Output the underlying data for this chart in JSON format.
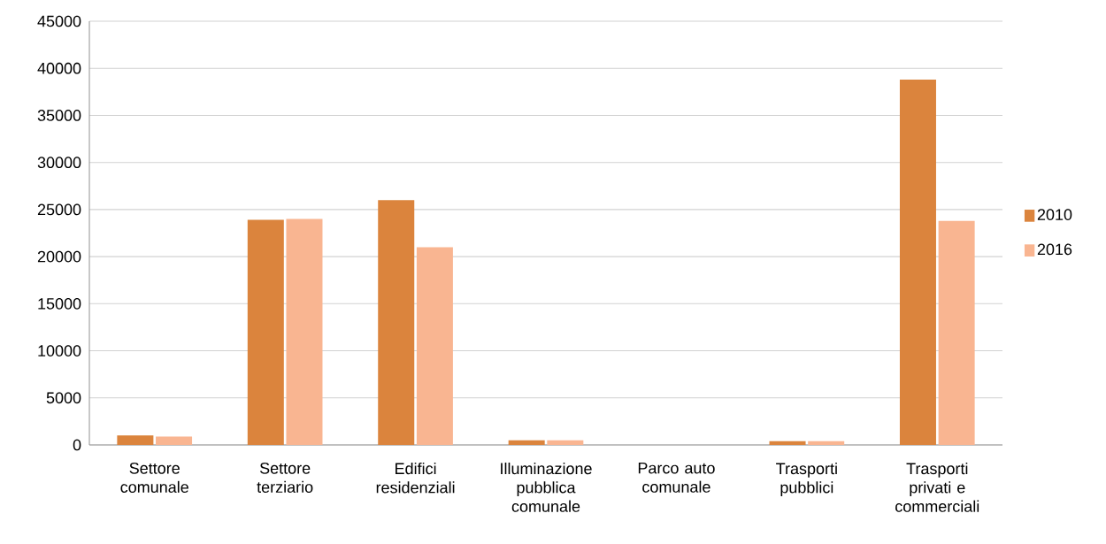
{
  "chart_data": {
    "type": "bar",
    "categories": [
      "Settore comunale",
      "Settore terziario",
      "Edifici residenziali",
      "Illuminazione pubblica comunale",
      "Parco auto comunale",
      "Trasporti pubblici",
      "Trasporti privati e commerciali"
    ],
    "series": [
      {
        "name": "2010",
        "color": "#db843d",
        "values": [
          1000,
          23900,
          26000,
          500,
          0,
          400,
          38800
        ]
      },
      {
        "name": "2016",
        "color": "#f9b591",
        "values": [
          900,
          24000,
          21000,
          500,
          0,
          400,
          23800
        ]
      }
    ],
    "ylim": [
      0,
      45000
    ],
    "yticks": [
      0,
      5000,
      10000,
      15000,
      20000,
      25000,
      30000,
      35000,
      40000,
      45000
    ],
    "grid": "y",
    "legend": "right"
  }
}
